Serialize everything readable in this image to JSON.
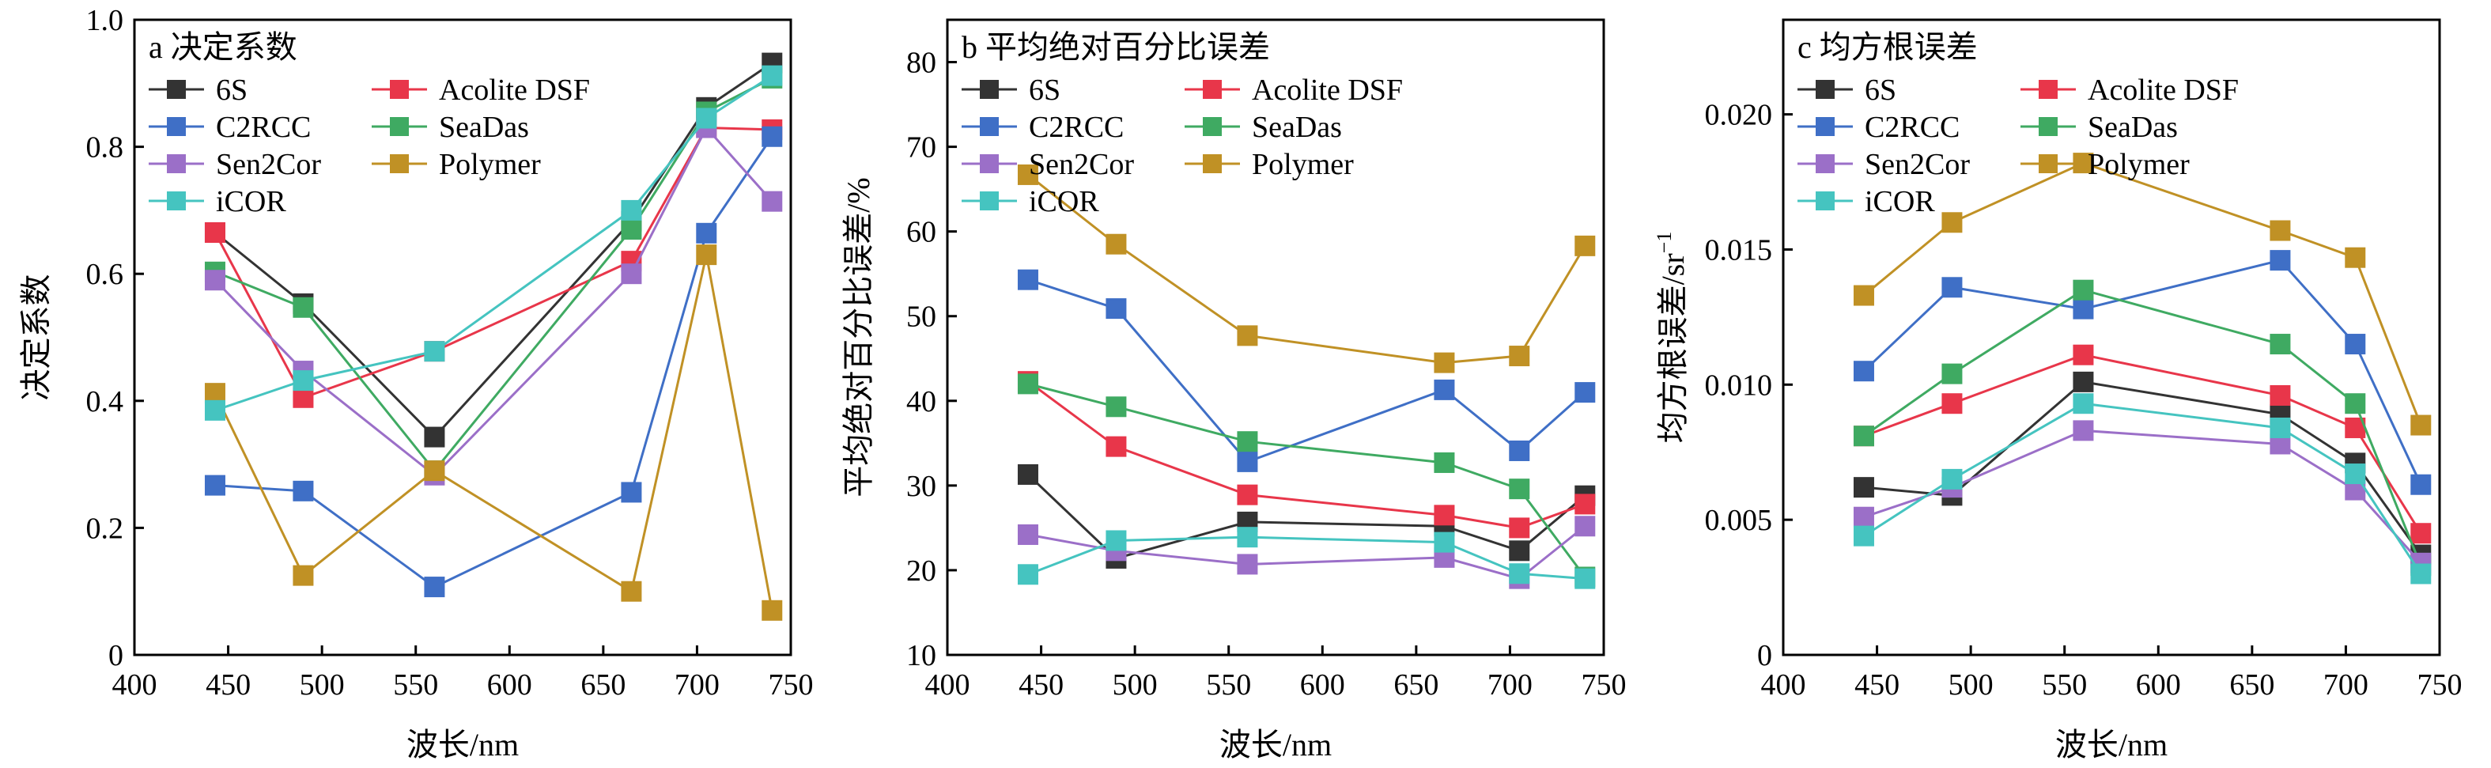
{
  "series_styles": [
    {
      "name": "6S",
      "color": "#333333"
    },
    {
      "name": "Acolite DSF",
      "color": "#e8364a"
    },
    {
      "name": "C2RCC",
      "color": "#3f6fc6"
    },
    {
      "name": "SeaDas",
      "color": "#3faa62"
    },
    {
      "name": "Sen2Cor",
      "color": "#9b6fc8"
    },
    {
      "name": "Polymer",
      "color": "#c09125"
    },
    {
      "name": "iCOR",
      "color": "#45c4c0"
    }
  ],
  "chart_data": [
    {
      "type": "line",
      "title": "a 决定系数",
      "xlabel": "波长/nm",
      "ylabel": "决定系数",
      "xlim": [
        400,
        750
      ],
      "ylim": [
        0,
        1.0
      ],
      "xticks": [
        400,
        450,
        500,
        550,
        600,
        650,
        700,
        750
      ],
      "yticks": [
        0,
        0.2,
        0.4,
        0.6,
        0.8,
        1.0
      ],
      "ytick_labels": [
        "0",
        "0.2",
        "0.4",
        "0.6",
        "0.8",
        "1.0"
      ],
      "x": [
        443,
        490,
        560,
        665,
        705,
        740
      ],
      "series": [
        {
          "name": "6S",
          "values": [
            0.665,
            0.553,
            0.343,
            0.683,
            0.862,
            0.932
          ]
        },
        {
          "name": "Acolite DSF",
          "values": [
            0.665,
            0.405,
            0.478,
            0.62,
            0.83,
            0.827
          ]
        },
        {
          "name": "C2RCC",
          "values": [
            0.267,
            0.258,
            0.107,
            0.256,
            0.664,
            0.816
          ]
        },
        {
          "name": "SeaDas",
          "values": [
            0.603,
            0.547,
            0.29,
            0.67,
            0.855,
            0.908
          ]
        },
        {
          "name": "Sen2Cor",
          "values": [
            0.59,
            0.447,
            0.283,
            0.6,
            0.83,
            0.714
          ]
        },
        {
          "name": "Polymer",
          "values": [
            0.412,
            0.125,
            0.29,
            0.1,
            0.63,
            0.07
          ]
        },
        {
          "name": "iCOR",
          "values": [
            0.385,
            0.432,
            0.478,
            0.7,
            0.845,
            0.912
          ]
        }
      ]
    },
    {
      "type": "line",
      "title": "b 平均绝对百分比误差",
      "xlabel": "波长/nm",
      "ylabel": "平均绝对百分比误差/%",
      "xlim": [
        400,
        750
      ],
      "ylim": [
        10,
        85
      ],
      "xticks": [
        400,
        450,
        500,
        550,
        600,
        650,
        700,
        750
      ],
      "yticks": [
        10,
        20,
        30,
        40,
        50,
        60,
        70,
        80
      ],
      "ytick_labels": [
        "10",
        "20",
        "30",
        "40",
        "50",
        "60",
        "70",
        "80"
      ],
      "x": [
        443,
        490,
        560,
        665,
        705,
        740
      ],
      "series": [
        {
          "name": "6S",
          "values": [
            31.3,
            21.4,
            25.7,
            25.2,
            22.3,
            28.8
          ]
        },
        {
          "name": "Acolite DSF",
          "values": [
            42.3,
            34.6,
            28.9,
            26.5,
            25.0,
            27.8
          ]
        },
        {
          "name": "C2RCC",
          "values": [
            54.3,
            50.9,
            32.8,
            41.3,
            34.1,
            41.0
          ]
        },
        {
          "name": "SeaDas",
          "values": [
            42.0,
            39.3,
            35.2,
            32.7,
            29.6,
            19.2
          ]
        },
        {
          "name": "Sen2Cor",
          "values": [
            24.2,
            22.3,
            20.7,
            21.5,
            19.0,
            25.2
          ]
        },
        {
          "name": "Polymer",
          "values": [
            66.7,
            58.5,
            47.7,
            44.5,
            45.3,
            58.3
          ]
        },
        {
          "name": "iCOR",
          "values": [
            19.5,
            23.5,
            23.9,
            23.3,
            19.6,
            19.0
          ]
        }
      ]
    },
    {
      "type": "line",
      "title": "c 均方根误差",
      "xlabel": "波长/nm",
      "ylabel": "均方根误差/sr",
      "ylabel_sup": "−1",
      "xlim": [
        400,
        750
      ],
      "ylim": [
        0,
        0.0235
      ],
      "xticks": [
        400,
        450,
        500,
        550,
        600,
        650,
        700,
        750
      ],
      "yticks": [
        0,
        0.005,
        0.01,
        0.015,
        0.02
      ],
      "ytick_labels": [
        "0",
        "0.005",
        "0.010",
        "0.015",
        "0.020"
      ],
      "x": [
        443,
        490,
        560,
        665,
        705,
        740
      ],
      "series": [
        {
          "name": "6S",
          "values": [
            0.0062,
            0.0059,
            0.0101,
            0.0089,
            0.0071,
            0.0037
          ]
        },
        {
          "name": "Acolite DSF",
          "values": [
            0.0081,
            0.0093,
            0.0111,
            0.0096,
            0.0084,
            0.0045
          ]
        },
        {
          "name": "C2RCC",
          "values": [
            0.0105,
            0.0136,
            0.0128,
            0.0146,
            0.0115,
            0.0063
          ]
        },
        {
          "name": "SeaDas",
          "values": [
            0.0081,
            0.0104,
            0.0135,
            0.0115,
            0.0093,
            0.0033
          ]
        },
        {
          "name": "Sen2Cor",
          "values": [
            0.0051,
            0.0062,
            0.0083,
            0.0078,
            0.0061,
            0.0034
          ]
        },
        {
          "name": "Polymer",
          "values": [
            0.0133,
            0.016,
            0.0182,
            0.0157,
            0.0147,
            0.0085
          ]
        },
        {
          "name": "iCOR",
          "values": [
            0.0044,
            0.0065,
            0.0093,
            0.0084,
            0.0067,
            0.003
          ]
        }
      ]
    }
  ]
}
